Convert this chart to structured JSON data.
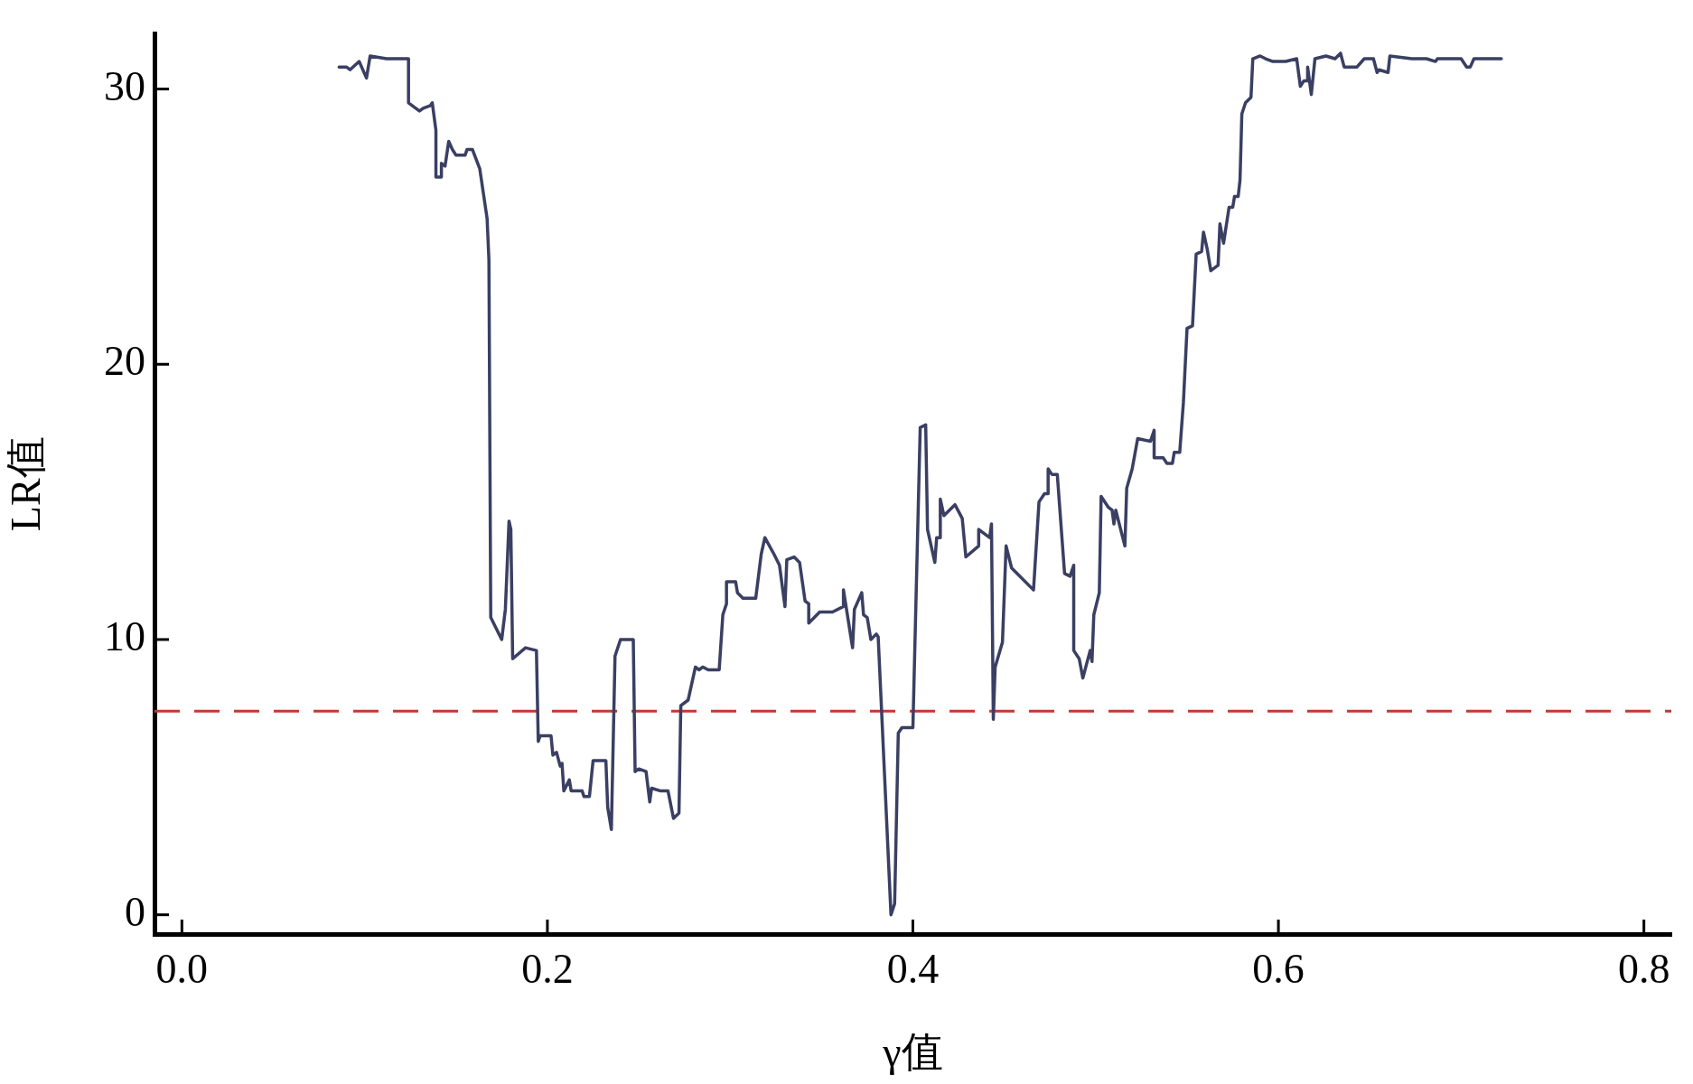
{
  "chart_data": {
    "type": "line",
    "xlabel": "γ值",
    "ylabel": "LR值",
    "xlim": [
      -0.015,
      0.815
    ],
    "xticks": [
      {
        "value": 0,
        "label": "0.0"
      },
      {
        "value": 0.2,
        "label": "0.2"
      },
      {
        "value": 0.4,
        "label": "0.4"
      },
      {
        "value": 0.6,
        "label": "0.6"
      },
      {
        "value": 0.8,
        "label": "0.8"
      }
    ],
    "ylim": [
      -0.7,
      32
    ],
    "yticks": [
      0,
      10,
      20,
      30
    ],
    "grid": false,
    "legend": false,
    "marker": "none",
    "line_style": "solid",
    "ref_lines": [
      {
        "axis": "y",
        "value": 7.4,
        "color": "#c8382e",
        "line_style": "dashed"
      }
    ],
    "series": [
      {
        "color": "#3a3f63",
        "x": [
          0.086,
          0.09,
          0.092,
          0.097,
          0.101,
          0.103,
          0.112,
          0.117,
          0.119,
          0.124,
          0.124,
          0.13,
          0.132,
          0.136,
          0.137,
          0.139,
          0.139,
          0.142,
          0.142,
          0.144,
          0.146,
          0.148,
          0.15,
          0.155,
          0.156,
          0.159,
          0.163,
          0.167,
          0.168,
          0.169,
          0.175,
          0.177,
          0.179,
          0.18,
          0.181,
          0.188,
          0.194,
          0.195,
          0.196,
          0.202,
          0.203,
          0.205,
          0.207,
          0.208,
          0.209,
          0.212,
          0.213,
          0.219,
          0.22,
          0.223,
          0.225,
          0.232,
          0.233,
          0.235,
          0.237,
          0.24,
          0.247,
          0.248,
          0.25,
          0.254,
          0.256,
          0.257,
          0.262,
          0.266,
          0.269,
          0.272,
          0.273,
          0.277,
          0.281,
          0.283,
          0.285,
          0.288,
          0.294,
          0.296,
          0.298,
          0.298,
          0.303,
          0.304,
          0.307,
          0.314,
          0.317,
          0.319,
          0.324,
          0.327,
          0.33,
          0.331,
          0.335,
          0.338,
          0.341,
          0.343,
          0.343,
          0.349,
          0.356,
          0.362,
          0.362,
          0.367,
          0.368,
          0.372,
          0.373,
          0.375,
          0.377,
          0.38,
          0.381,
          0.388,
          0.39,
          0.392,
          0.394,
          0.4,
          0.404,
          0.407,
          0.408,
          0.412,
          0.413,
          0.415,
          0.415,
          0.417,
          0.423,
          0.427,
          0.429,
          0.436,
          0.436,
          0.442,
          0.443,
          0.444,
          0.445,
          0.449,
          0.451,
          0.454,
          0.466,
          0.469,
          0.472,
          0.474,
          0.474,
          0.476,
          0.479,
          0.483,
          0.486,
          0.488,
          0.488,
          0.491,
          0.493,
          0.497,
          0.498,
          0.499,
          0.502,
          0.503,
          0.507,
          0.509,
          0.51,
          0.511,
          0.516,
          0.517,
          0.52,
          0.523,
          0.53,
          0.532,
          0.532,
          0.537,
          0.539,
          0.542,
          0.543,
          0.546,
          0.548,
          0.55,
          0.553,
          0.555,
          0.558,
          0.559,
          0.561,
          0.563,
          0.567,
          0.568,
          0.57,
          0.573,
          0.575,
          0.576,
          0.578,
          0.579,
          0.58,
          0.582,
          0.585,
          0.586,
          0.59,
          0.593,
          0.597,
          0.604,
          0.61,
          0.612,
          0.614,
          0.616,
          0.616,
          0.618,
          0.62,
          0.626,
          0.631,
          0.634,
          0.636,
          0.643,
          0.647,
          0.652,
          0.654,
          0.655,
          0.66,
          0.661,
          0.673,
          0.681,
          0.686,
          0.687,
          0.7,
          0.703,
          0.705,
          0.707,
          0.722
        ],
        "values": [
          30.8,
          30.8,
          30.7,
          31,
          30.4,
          31.2,
          31.1,
          31.1,
          31.1,
          31.1,
          29.5,
          29.2,
          29.3,
          29.4,
          29.5,
          28.5,
          26.8,
          26.8,
          27.3,
          27.2,
          28.1,
          27.8,
          27.6,
          27.6,
          27.8,
          27.8,
          27.1,
          25.3,
          23.8,
          10.8,
          10,
          11.1,
          14.3,
          14,
          9.3,
          9.7,
          9.6,
          6.3,
          6.5,
          6.5,
          5.8,
          5.9,
          5.4,
          5.5,
          4.5,
          4.9,
          4.5,
          4.5,
          4.3,
          4.3,
          5.6,
          5.6,
          3.9,
          3.1,
          9.4,
          10,
          10,
          5.2,
          5.3,
          5.2,
          4.1,
          4.6,
          4.5,
          4.5,
          3.5,
          3.7,
          7.6,
          7.8,
          9,
          8.9,
          9,
          8.9,
          8.9,
          10.9,
          11.3,
          12.1,
          12.1,
          11.7,
          11.5,
          11.5,
          13.1,
          13.7,
          13.1,
          12.7,
          11.2,
          12.9,
          13,
          12.8,
          11.4,
          11.3,
          10.6,
          11,
          11,
          11.2,
          11.8,
          9.7,
          11.1,
          11.7,
          10.9,
          10.8,
          10,
          10.2,
          10.1,
          0,
          0.4,
          6.6,
          6.8,
          6.8,
          17.7,
          17.8,
          14,
          12.8,
          13.7,
          13.7,
          15.1,
          14.5,
          14.9,
          14.4,
          13,
          13.4,
          14,
          13.7,
          14.2,
          7.1,
          9,
          9.9,
          13.4,
          12.6,
          11.8,
          15,
          15.3,
          15.3,
          16.2,
          16,
          16,
          12.4,
          12.3,
          12.7,
          9.6,
          9.3,
          8.6,
          9.6,
          9.2,
          10.9,
          11.7,
          15.2,
          14.8,
          14.7,
          14.2,
          14.7,
          13.4,
          15.5,
          16.2,
          17.3,
          17.2,
          17.6,
          16.6,
          16.6,
          16.4,
          16.4,
          16.8,
          16.8,
          18.6,
          21.3,
          21.4,
          24,
          24.1,
          24.8,
          24.2,
          23.4,
          23.6,
          25.1,
          24.4,
          25.7,
          25.7,
          26.1,
          26.1,
          26.7,
          29.1,
          29.5,
          29.7,
          31.1,
          31.2,
          31.1,
          31,
          31,
          31.1,
          30.1,
          30.3,
          30.3,
          30.8,
          29.8,
          31.1,
          31.2,
          31.1,
          31.3,
          30.8,
          30.8,
          31.1,
          31.1,
          30.6,
          30.7,
          30.6,
          31.2,
          31.1,
          31.1,
          31,
          31.1,
          31.1,
          30.8,
          30.8,
          31.1,
          31.1
        ]
      }
    ]
  }
}
